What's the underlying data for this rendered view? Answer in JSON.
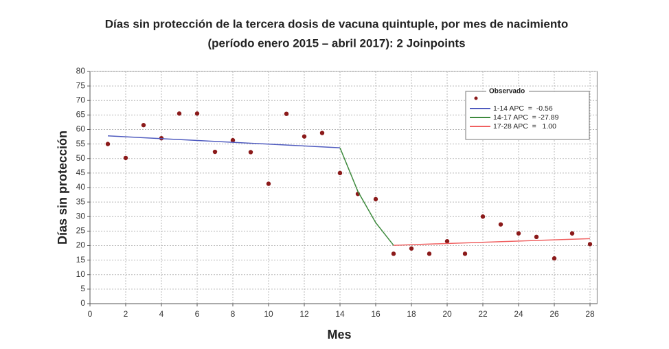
{
  "chart_data": {
    "type": "scatter",
    "title": "Días sin protección de la tercera dosis de vacuna quintuple, por mes de nacimiento",
    "subtitle": "(período enero 2015 – abril 2017): 2 Joinpoints",
    "x_label": "Mes",
    "y_label": "Días sin protección",
    "xlim": [
      0,
      28.4
    ],
    "ylim": [
      0,
      80
    ],
    "xticks": [
      0,
      2,
      4,
      6,
      8,
      10,
      12,
      14,
      16,
      18,
      20,
      22,
      24,
      26,
      28
    ],
    "yticks": [
      0,
      5,
      10,
      15,
      20,
      25,
      30,
      35,
      40,
      45,
      50,
      55,
      60,
      65,
      70,
      75,
      80
    ],
    "grid": true,
    "x": [
      1,
      2,
      3,
      4,
      5,
      6,
      7,
      8,
      9,
      10,
      11,
      12,
      13,
      14,
      15,
      16,
      17,
      18,
      19,
      20,
      21,
      22,
      23,
      24,
      25,
      26,
      27,
      28
    ],
    "series": [
      {
        "name": "Observado",
        "color": "#8b1a1a",
        "values": [
          55,
          50.2,
          61.5,
          57,
          65.5,
          65.5,
          52.3,
          56.3,
          52.2,
          41.3,
          65.4,
          57.6,
          58.8,
          45,
          37.8,
          36,
          17.2,
          19,
          17.2,
          21.5,
          17.2,
          30,
          27.3,
          24.2,
          23,
          15.6,
          24.2,
          20.5
        ]
      },
      {
        "name": "1-14 APC  =  -0.56",
        "color": "#4f5bbf",
        "x": [
          1,
          14
        ],
        "values": [
          57.8,
          53.7
        ]
      },
      {
        "name": "14-17 APC  = -27.89",
        "color": "#3d8a3d",
        "x": [
          14,
          15,
          16,
          17
        ],
        "values": [
          53.7,
          38.7,
          27.9,
          20.1
        ]
      },
      {
        "name": "17-28 APC  =   1.00",
        "color": "#f06060",
        "x": [
          17,
          28
        ],
        "values": [
          20.1,
          22.4
        ]
      }
    ]
  }
}
